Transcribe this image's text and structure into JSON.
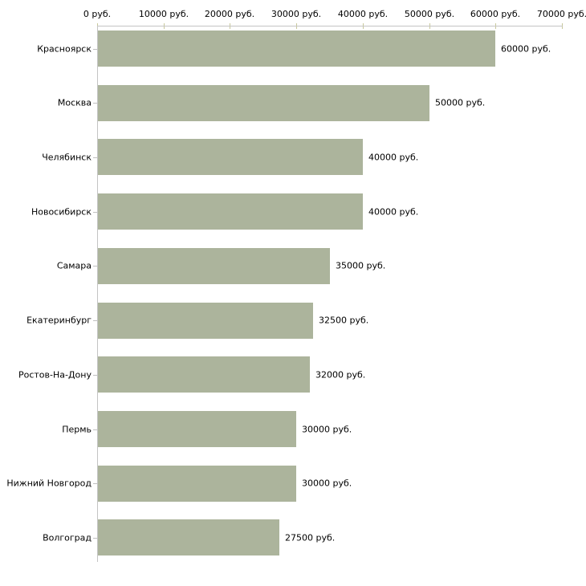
{
  "chart_data": {
    "type": "bar",
    "orientation": "horizontal",
    "title": "",
    "xlabel": "",
    "ylabel": "",
    "categories": [
      "Красноярск",
      "Москва",
      "Челябинск",
      "Новосибирск",
      "Самара",
      "Екатеринбург",
      "Ростов-На-Дону",
      "Пермь",
      "Нижний Новгород",
      "Волгоград"
    ],
    "values": [
      60000,
      50000,
      40000,
      40000,
      35000,
      32500,
      32000,
      30000,
      30000,
      27500
    ],
    "value_labels": [
      "60000 руб.",
      "50000 руб.",
      "40000 руб.",
      "40000 руб.",
      "35000 руб.",
      "32500 руб.",
      "32000 руб.",
      "30000 руб.",
      "30000 руб.",
      "27500 руб."
    ],
    "x_axis": {
      "position": "top",
      "xlim": [
        0,
        70000
      ],
      "ticks": [
        0,
        10000,
        20000,
        30000,
        40000,
        50000,
        60000,
        70000
      ],
      "tick_labels": [
        "0 руб.",
        "10000 руб.",
        "20000 руб.",
        "30000 руб.",
        "40000 руб.",
        "50000 руб.",
        "60000 руб.",
        "70000 руб."
      ]
    },
    "grid": false,
    "legend": false,
    "colors": {
      "bar": "#acb49c",
      "axis_line": "#c4c4c4",
      "x_tick_mark": "#c8c89a",
      "category_tick_mark": "#c0c0c0",
      "text": "#000000",
      "background": "#ffffff"
    }
  }
}
